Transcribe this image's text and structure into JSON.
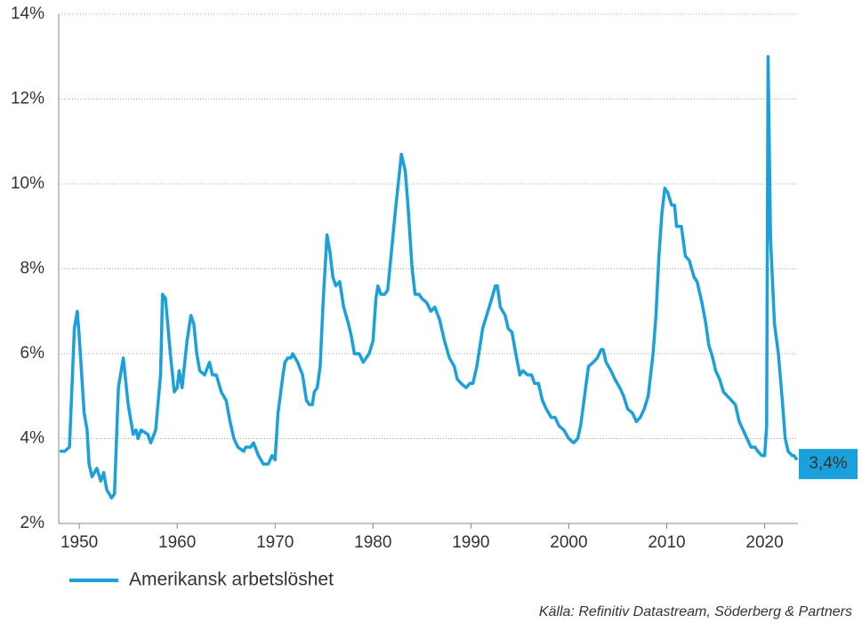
{
  "chart_data": {
    "type": "line",
    "series": [
      {
        "name": "Amerikansk arbetslöshet",
        "color": "#1aa0da",
        "x": [
          1948.0,
          1948.5,
          1949.0,
          1949.5,
          1949.8,
          1950.0,
          1950.5,
          1950.8,
          1951.0,
          1951.3,
          1951.8,
          1952.2,
          1952.5,
          1952.8,
          1953.3,
          1953.6,
          1954.0,
          1954.5,
          1955.0,
          1955.5,
          1955.8,
          1956.0,
          1956.3,
          1957.0,
          1957.3,
          1957.8,
          1958.3,
          1958.5,
          1958.8,
          1959.3,
          1959.7,
          1960.0,
          1960.2,
          1960.5,
          1961.0,
          1961.4,
          1961.7,
          1962.0,
          1962.3,
          1962.8,
          1963.3,
          1963.6,
          1964.0,
          1964.5,
          1965.0,
          1965.4,
          1965.8,
          1966.2,
          1966.8,
          1967.0,
          1967.5,
          1967.8,
          1968.3,
          1968.8,
          1969.3,
          1969.7,
          1970.0,
          1970.3,
          1970.8,
          1971.0,
          1971.3,
          1971.6,
          1971.8,
          1972.3,
          1972.8,
          1973.2,
          1973.5,
          1973.8,
          1974.0,
          1974.3,
          1974.6,
          1974.9,
          1975.3,
          1975.6,
          1975.9,
          1976.2,
          1976.6,
          1977.0,
          1977.5,
          1977.8,
          1978.1,
          1978.6,
          1979.0,
          1979.3,
          1979.6,
          1980.0,
          1980.3,
          1980.5,
          1980.8,
          1981.2,
          1981.5,
          1981.8,
          1982.3,
          1982.9,
          1983.3,
          1983.6,
          1984.0,
          1984.3,
          1984.7,
          1985.0,
          1985.5,
          1985.9,
          1986.3,
          1986.8,
          1987.3,
          1987.8,
          1988.3,
          1988.6,
          1989.0,
          1989.5,
          1989.9,
          1990.2,
          1990.6,
          1991.2,
          1991.6,
          1992.0,
          1992.5,
          1992.7,
          1993.0,
          1993.5,
          1993.8,
          1994.2,
          1994.5,
          1995.0,
          1995.3,
          1995.8,
          1996.2,
          1996.5,
          1996.9,
          1997.3,
          1997.7,
          1998.2,
          1998.6,
          1999.0,
          1999.5,
          2000.0,
          2000.5,
          2000.9,
          2001.2,
          2001.6,
          2002.0,
          2002.5,
          2002.9,
          2003.3,
          2003.5,
          2003.8,
          2004.3,
          2004.7,
          2005.2,
          2005.6,
          2006.0,
          2006.5,
          2006.9,
          2007.3,
          2007.7,
          2008.1,
          2008.6,
          2008.9,
          2009.2,
          2009.5,
          2009.8,
          2010.1,
          2010.5,
          2010.8,
          2011.0,
          2011.5,
          2011.9,
          2012.3,
          2012.8,
          2013.1,
          2013.6,
          2014.0,
          2014.3,
          2014.7,
          2015.0,
          2015.4,
          2015.8,
          2016.2,
          2016.6,
          2017.0,
          2017.4,
          2017.8,
          2018.2,
          2018.6,
          2019.0,
          2019.3,
          2019.7,
          2020.0,
          2020.2,
          2020.35,
          2020.6,
          2021.0,
          2021.4,
          2021.8,
          2022.1,
          2022.4,
          2022.8,
          2023.0,
          2023.3
        ],
        "values": [
          3.7,
          3.7,
          3.8,
          6.6,
          7.0,
          6.4,
          4.6,
          4.2,
          3.4,
          3.1,
          3.3,
          3.0,
          3.2,
          2.8,
          2.6,
          2.7,
          5.2,
          5.9,
          4.8,
          4.1,
          4.2,
          4.0,
          4.2,
          4.1,
          3.9,
          4.2,
          5.5,
          7.4,
          7.3,
          6.0,
          5.1,
          5.2,
          5.6,
          5.2,
          6.3,
          6.9,
          6.7,
          6.0,
          5.6,
          5.5,
          5.8,
          5.5,
          5.5,
          5.1,
          4.9,
          4.4,
          4.0,
          3.8,
          3.7,
          3.8,
          3.8,
          3.9,
          3.6,
          3.4,
          3.4,
          3.6,
          3.5,
          4.6,
          5.5,
          5.8,
          5.9,
          5.9,
          6.0,
          5.8,
          5.5,
          4.9,
          4.8,
          4.8,
          5.1,
          5.2,
          5.7,
          7.2,
          8.8,
          8.4,
          7.8,
          7.6,
          7.7,
          7.1,
          6.7,
          6.4,
          6.0,
          6.0,
          5.8,
          5.9,
          6.0,
          6.3,
          7.3,
          7.6,
          7.4,
          7.4,
          7.5,
          8.2,
          9.4,
          10.7,
          10.3,
          9.4,
          8.0,
          7.4,
          7.4,
          7.3,
          7.2,
          7.0,
          7.1,
          6.8,
          6.3,
          5.9,
          5.7,
          5.4,
          5.3,
          5.2,
          5.3,
          5.3,
          5.7,
          6.6,
          6.9,
          7.2,
          7.6,
          7.6,
          7.1,
          6.9,
          6.6,
          6.5,
          6.1,
          5.5,
          5.6,
          5.5,
          5.5,
          5.3,
          5.3,
          4.9,
          4.7,
          4.5,
          4.5,
          4.3,
          4.2,
          4.0,
          3.9,
          4.0,
          4.3,
          5.0,
          5.7,
          5.8,
          5.9,
          6.1,
          6.1,
          5.8,
          5.6,
          5.4,
          5.2,
          5.0,
          4.7,
          4.6,
          4.4,
          4.5,
          4.7,
          5.0,
          6.0,
          6.9,
          8.3,
          9.3,
          9.9,
          9.8,
          9.5,
          9.5,
          9.0,
          9.0,
          8.3,
          8.2,
          7.8,
          7.7,
          7.2,
          6.7,
          6.2,
          5.9,
          5.6,
          5.4,
          5.1,
          5.0,
          4.9,
          4.8,
          4.4,
          4.2,
          4.0,
          3.8,
          3.8,
          3.7,
          3.6,
          3.6,
          4.3,
          13.0,
          8.7,
          6.7,
          6.0,
          4.9,
          4.0,
          3.7,
          3.6,
          3.6,
          3.5
        ]
      }
    ],
    "annotation": {
      "value": 3.4,
      "text": "3,4%"
    },
    "xlim": [
      1947.9,
      2023.4
    ],
    "xticks": [
      1950,
      1960,
      1970,
      1980,
      1990,
      2000,
      2010,
      2020
    ],
    "ylim": [
      2,
      14
    ],
    "yticks": [
      {
        "value": 2,
        "label": "2%"
      },
      {
        "value": 4,
        "label": "4%"
      },
      {
        "value": 6,
        "label": "6%"
      },
      {
        "value": 8,
        "label": "8%"
      },
      {
        "value": 10,
        "label": "10%"
      },
      {
        "value": 12,
        "label": "12%"
      },
      {
        "value": 14,
        "label": "14%"
      }
    ],
    "grid": true,
    "source": "Källa: Refinitiv Datastream, Söderberg & Partners"
  }
}
